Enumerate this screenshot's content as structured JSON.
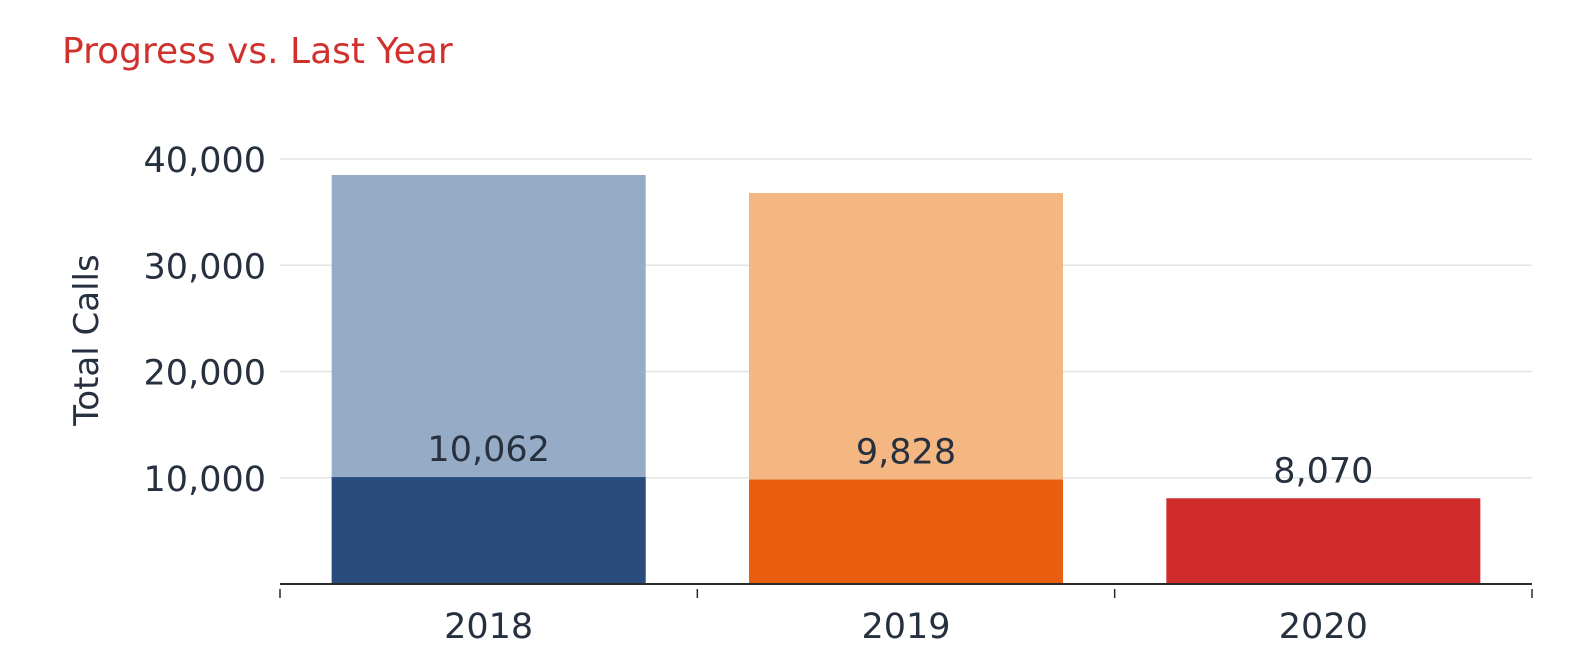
{
  "chart_data": {
    "type": "bar",
    "title": "Progress vs. Last Year",
    "xlabel": "",
    "ylabel": "Total Calls",
    "categories": [
      "2018",
      "2019",
      "2020"
    ],
    "totals": [
      38500,
      36800,
      null
    ],
    "progress": [
      10062,
      9828,
      8070
    ],
    "progress_labels": [
      "10,062",
      "9,828",
      "8,070"
    ],
    "ylim": [
      0,
      40000
    ],
    "yticks": [
      10000,
      20000,
      30000,
      40000
    ],
    "ytick_labels": [
      "10,000",
      "20,000",
      "30,000",
      "40,000"
    ],
    "grid": true,
    "legend": "none",
    "colors": {
      "title": "#d0312d",
      "total": [
        "#96abc5",
        "#f5b782",
        null
      ],
      "progress": [
        "#294c7d",
        "#ea5f0f",
        "#d02c2c"
      ],
      "grid": "#e4e4e4",
      "axis": "#2a2a2a"
    }
  }
}
